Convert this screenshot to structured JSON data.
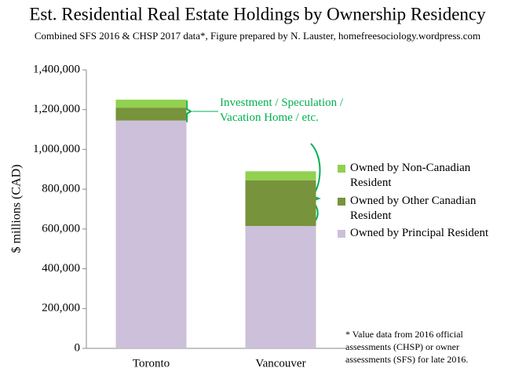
{
  "chart_data": {
    "type": "stacked_bar",
    "title": "Est. Residential Real Estate Holdings by Ownership Residency",
    "subtitle": "Combined SFS 2016 & CHSP 2017 data*, Figure prepared by N. Lauster, homefreesociology.wordpress.com",
    "y_label": "$ millions (CAD)",
    "categories": [
      "Toronto",
      "Vancouver"
    ],
    "series": [
      {
        "name": "Owned by Principal Resident",
        "color": "#ccc0da",
        "values": [
          1145000,
          615000
        ]
      },
      {
        "name": "Owned by Other Canadian Resident",
        "color": "#77933c",
        "values": [
          65000,
          230000
        ]
      },
      {
        "name": "Owned by Non-Canadian Resident",
        "color": "#92d050",
        "values": [
          40000,
          45000
        ]
      }
    ],
    "ylim": [
      0,
      1400000
    ],
    "yticks": [
      0,
      {
        "value": 200000,
        "label": "200,000"
      },
      {
        "value": 400000,
        "label": "400,000"
      },
      {
        "value": 600000,
        "label": "600,000"
      },
      {
        "value": 800000,
        "label": "800,000"
      },
      {
        "value": 1000000,
        "label": "1,000,000"
      },
      {
        "value": 1200000,
        "label": "1,200,000"
      },
      {
        "value": 1400000,
        "label": "1,400,000"
      }
    ],
    "grid": false,
    "annotation": "Investment / Speculation / Vacation Home / etc.",
    "annotation_color": "#00b050",
    "footnote": "* Value data from 2016 official assessments (CHSP) or owner assessments (SFS) for late 2016."
  }
}
